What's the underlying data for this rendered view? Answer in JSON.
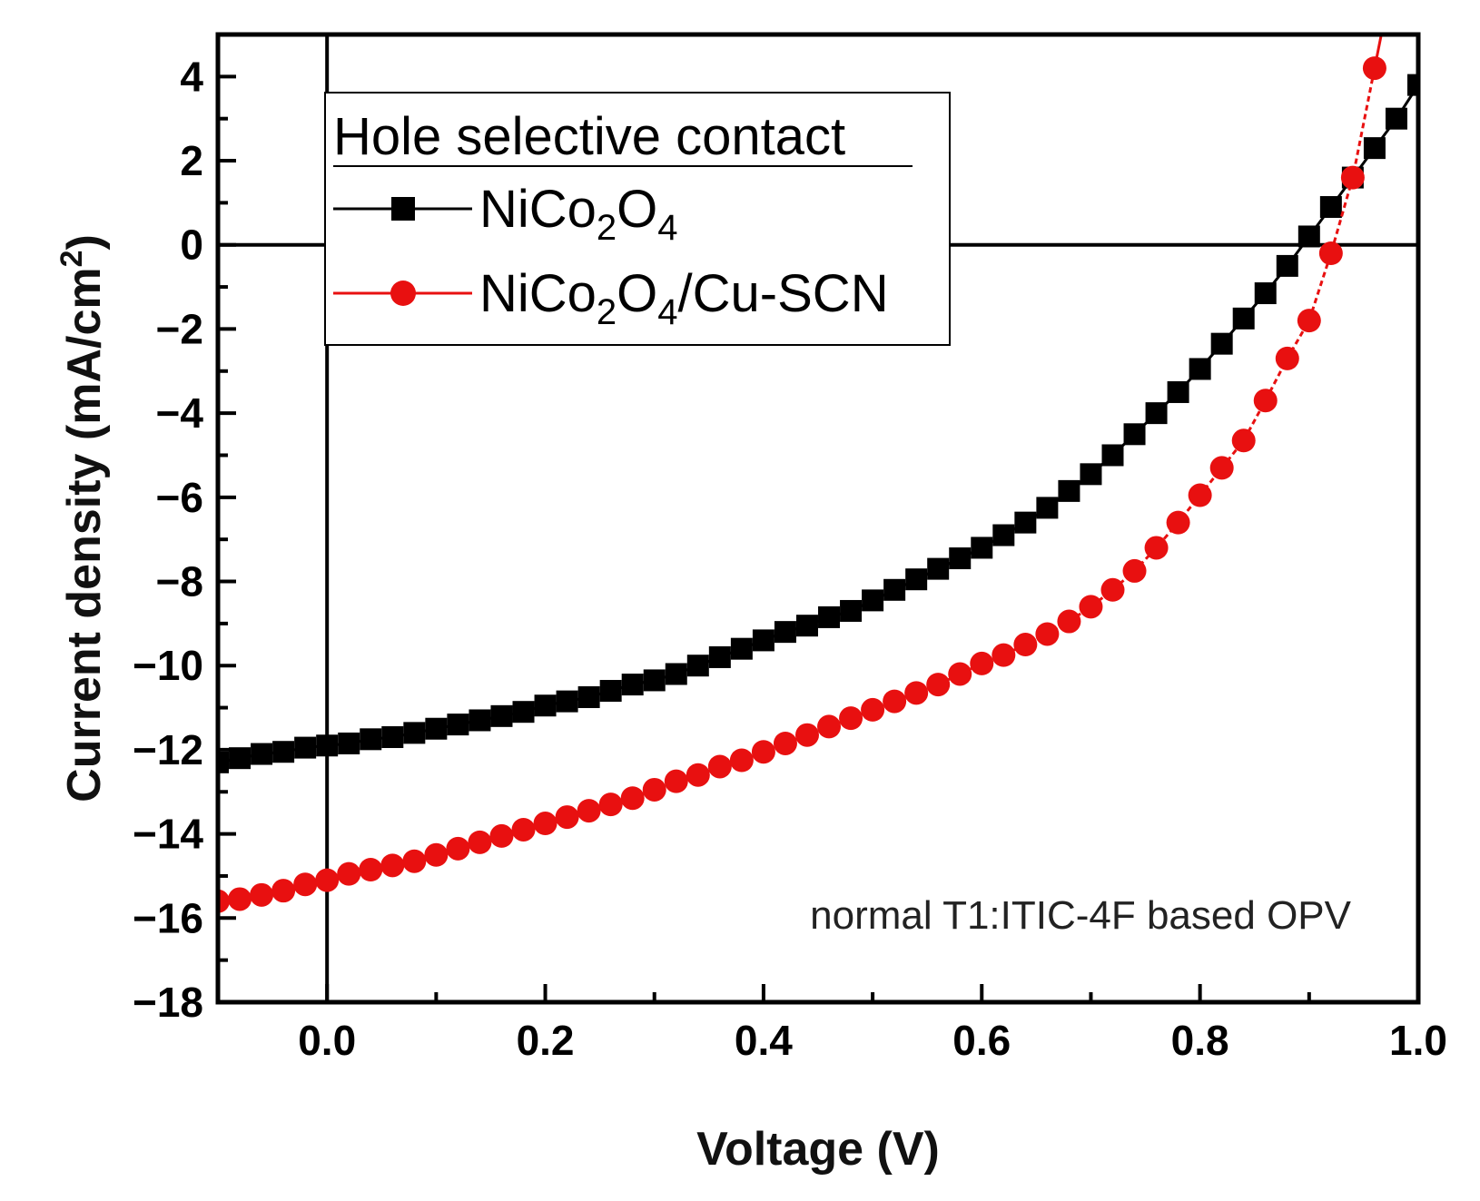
{
  "chart_data": {
    "type": "scatter",
    "title": "",
    "xlabel": "Voltage (V)",
    "ylabel": "Current density (mA/cm²)",
    "ylabel_parts": {
      "main": "Current density (mA/cm",
      "sup": "2",
      "end": ")"
    },
    "xlim": [
      -0.1,
      1.0
    ],
    "ylim": [
      -18,
      5
    ],
    "x_ticks": [
      0.0,
      0.2,
      0.4,
      0.6,
      0.8,
      1.0
    ],
    "x_tick_labels": [
      "0.0",
      "0.2",
      "0.4",
      "0.6",
      "0.8",
      "1.0"
    ],
    "y_ticks": [
      -18,
      -16,
      -14,
      -12,
      -10,
      -8,
      -6,
      -4,
      -2,
      0,
      2,
      4
    ],
    "y_tick_labels": [
      "−18",
      "−16",
      "−14",
      "−12",
      "−10",
      "−8",
      "−6",
      "−4",
      "−2",
      "0",
      "2",
      "4"
    ],
    "grid": false,
    "reference_lines": {
      "x": 0,
      "y": 0
    },
    "legend": {
      "title": "Hole selective contact",
      "placement": "top-left",
      "entries": [
        {
          "parts": [
            "NiCo",
            "2",
            "O",
            "4"
          ]
        },
        {
          "parts": [
            "NiCo",
            "2",
            "O",
            "4",
            "/Cu-SCN"
          ]
        }
      ]
    },
    "annotation": "normal T1:ITIC-4F based OPV",
    "series": [
      {
        "name": "NiCo₂O₄",
        "color": "#000000",
        "marker": "square",
        "x": [
          -0.1,
          -0.08,
          -0.06,
          -0.04,
          -0.02,
          0.0,
          0.02,
          0.04,
          0.06,
          0.08,
          0.1,
          0.12,
          0.14,
          0.16,
          0.18,
          0.2,
          0.22,
          0.24,
          0.26,
          0.28,
          0.3,
          0.32,
          0.34,
          0.36,
          0.38,
          0.4,
          0.42,
          0.44,
          0.46,
          0.48,
          0.5,
          0.52,
          0.54,
          0.56,
          0.58,
          0.6,
          0.62,
          0.64,
          0.66,
          0.68,
          0.7,
          0.72,
          0.74,
          0.76,
          0.78,
          0.8,
          0.82,
          0.84,
          0.86,
          0.88,
          0.9,
          0.92,
          0.94,
          0.96,
          0.98,
          1.0
        ],
        "y": [
          -12.3,
          -12.2,
          -12.1,
          -12.05,
          -11.95,
          -11.9,
          -11.85,
          -11.75,
          -11.7,
          -11.6,
          -11.5,
          -11.4,
          -11.3,
          -11.2,
          -11.1,
          -10.95,
          -10.85,
          -10.75,
          -10.6,
          -10.45,
          -10.35,
          -10.2,
          -10.0,
          -9.8,
          -9.6,
          -9.4,
          -9.2,
          -9.05,
          -8.85,
          -8.7,
          -8.45,
          -8.2,
          -7.95,
          -7.7,
          -7.45,
          -7.2,
          -6.9,
          -6.6,
          -6.25,
          -5.85,
          -5.45,
          -5.0,
          -4.5,
          -4.0,
          -3.5,
          -2.95,
          -2.35,
          -1.75,
          -1.15,
          -0.5,
          0.2,
          0.9,
          1.6,
          2.3,
          3.0,
          3.8
        ]
      },
      {
        "name": "NiCo₂O₄/Cu-SCN",
        "color": "#e81010",
        "marker": "circle",
        "x": [
          -0.1,
          -0.08,
          -0.06,
          -0.04,
          -0.02,
          0.0,
          0.02,
          0.04,
          0.06,
          0.08,
          0.1,
          0.12,
          0.14,
          0.16,
          0.18,
          0.2,
          0.22,
          0.24,
          0.26,
          0.28,
          0.3,
          0.32,
          0.34,
          0.36,
          0.38,
          0.4,
          0.42,
          0.44,
          0.46,
          0.48,
          0.5,
          0.52,
          0.54,
          0.56,
          0.58,
          0.6,
          0.62,
          0.64,
          0.66,
          0.68,
          0.7,
          0.72,
          0.74,
          0.76,
          0.78,
          0.8,
          0.82,
          0.84,
          0.86,
          0.88,
          0.9,
          0.92,
          0.94,
          0.96
        ],
        "y": [
          -15.6,
          -15.55,
          -15.45,
          -15.35,
          -15.2,
          -15.1,
          -14.95,
          -14.85,
          -14.75,
          -14.65,
          -14.5,
          -14.35,
          -14.2,
          -14.05,
          -13.9,
          -13.75,
          -13.6,
          -13.45,
          -13.3,
          -13.15,
          -12.95,
          -12.75,
          -12.6,
          -12.4,
          -12.25,
          -12.05,
          -11.85,
          -11.65,
          -11.45,
          -11.25,
          -11.05,
          -10.85,
          -10.65,
          -10.45,
          -10.2,
          -9.95,
          -9.75,
          -9.5,
          -9.25,
          -8.95,
          -8.6,
          -8.2,
          -7.75,
          -7.2,
          -6.6,
          -5.95,
          -5.3,
          -4.65,
          -3.7,
          -2.7,
          -1.8,
          -0.2,
          1.6,
          4.2
        ]
      }
    ]
  }
}
